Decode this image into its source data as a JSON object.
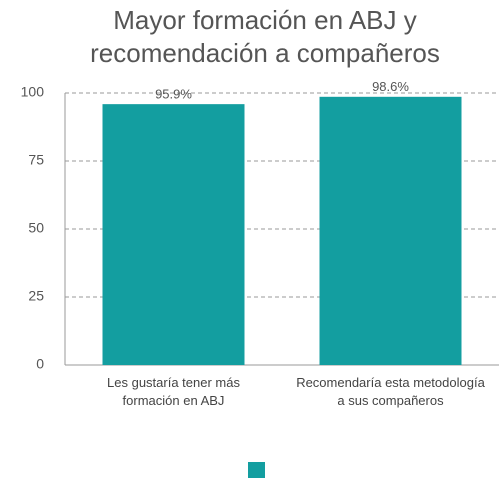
{
  "chart_data": {
    "type": "bar",
    "title": [
      "Mayor formación en ABJ y",
      "recomendación a compañeros"
    ],
    "categories": [
      "Les gustaría tener más formación en ABJ",
      "Recomendaría esta metodología a sus compañeros"
    ],
    "series": [
      {
        "color": "#139ea0",
        "values": [
          95.9,
          98.6
        ],
        "value_labels": [
          "95.9%",
          "98.6%"
        ]
      }
    ],
    "ylim": [
      0,
      100
    ],
    "yticks": [
      0,
      25,
      50,
      75,
      100
    ],
    "grid": true,
    "legend": "bottom"
  }
}
